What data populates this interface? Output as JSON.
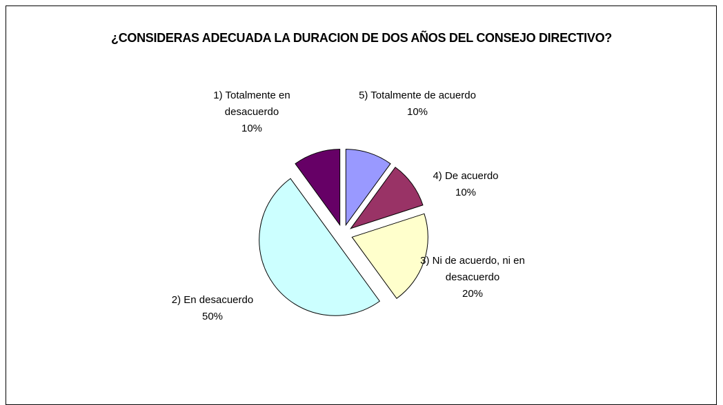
{
  "chart_data": {
    "type": "pie",
    "title": "¿CONSIDERAS ADECUADA LA DURACION DE DOS AÑOS DEL CONSEJO DIRECTIVO?",
    "categories": [
      "5) Totalmente de acuerdo",
      "4) De acuerdo",
      "3) Ni de acuerdo, ni en desacuerdo",
      "2) En desacuerdo",
      "1) Totalmente en desacuerdo"
    ],
    "values": [
      10,
      10,
      20,
      50,
      10
    ],
    "value_labels": [
      "10%",
      "10%",
      "20%",
      "50%",
      "10%"
    ],
    "colors": [
      "#9999ff",
      "#993366",
      "#ffffcc",
      "#ccffff",
      "#660066"
    ],
    "exploded": true
  }
}
